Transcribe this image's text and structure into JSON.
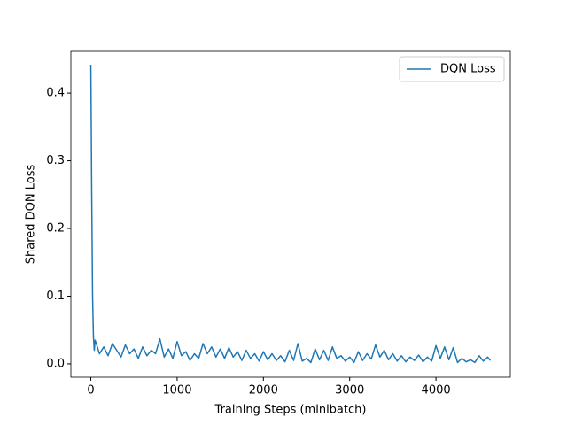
{
  "chart_data": {
    "type": "line",
    "xlabel": "Training Steps (minibatch)",
    "ylabel": "Shared DQN Loss",
    "x": [
      0,
      10,
      20,
      30,
      40,
      50,
      100,
      150,
      200,
      250,
      300,
      350,
      400,
      450,
      500,
      550,
      600,
      650,
      700,
      750,
      800,
      850,
      900,
      950,
      1000,
      1050,
      1100,
      1150,
      1200,
      1250,
      1300,
      1350,
      1400,
      1450,
      1500,
      1550,
      1600,
      1650,
      1700,
      1750,
      1800,
      1850,
      1900,
      1950,
      2000,
      2050,
      2100,
      2150,
      2200,
      2250,
      2300,
      2350,
      2400,
      2450,
      2500,
      2550,
      2600,
      2650,
      2700,
      2750,
      2800,
      2850,
      2900,
      2950,
      3000,
      3050,
      3100,
      3150,
      3200,
      3250,
      3300,
      3350,
      3400,
      3450,
      3500,
      3550,
      3600,
      3650,
      3700,
      3750,
      3800,
      3850,
      3900,
      3950,
      4000,
      4050,
      4100,
      4150,
      4200,
      4250,
      4300,
      4350,
      4400,
      4450,
      4500,
      4550,
      4600,
      4630
    ],
    "series": [
      {
        "name": "DQN Loss",
        "color": "#1f77b4",
        "values": [
          0.442,
          0.25,
          0.1,
          0.04,
          0.02,
          0.035,
          0.015,
          0.025,
          0.012,
          0.03,
          0.02,
          0.01,
          0.028,
          0.015,
          0.022,
          0.008,
          0.025,
          0.012,
          0.02,
          0.015,
          0.037,
          0.01,
          0.022,
          0.008,
          0.033,
          0.012,
          0.018,
          0.005,
          0.015,
          0.008,
          0.03,
          0.015,
          0.025,
          0.01,
          0.022,
          0.008,
          0.024,
          0.01,
          0.018,
          0.005,
          0.02,
          0.008,
          0.015,
          0.004,
          0.018,
          0.006,
          0.015,
          0.005,
          0.012,
          0.003,
          0.02,
          0.005,
          0.03,
          0.004,
          0.008,
          0.002,
          0.022,
          0.006,
          0.02,
          0.005,
          0.025,
          0.008,
          0.012,
          0.004,
          0.01,
          0.002,
          0.018,
          0.005,
          0.015,
          0.007,
          0.028,
          0.01,
          0.02,
          0.006,
          0.015,
          0.004,
          0.012,
          0.003,
          0.01,
          0.005,
          0.013,
          0.003,
          0.01,
          0.004,
          0.027,
          0.008,
          0.025,
          0.006,
          0.024,
          0.002,
          0.008,
          0.003,
          0.006,
          0.002,
          0.012,
          0.004,
          0.01,
          0.005
        ]
      }
    ],
    "xlim": [
      -231.5,
      4861.5
    ],
    "ylim": [
      -0.0197,
      0.4616
    ],
    "xticks": [
      0,
      1000,
      2000,
      3000,
      4000
    ],
    "yticks": [
      {
        "value": 0,
        "label": "0.0"
      },
      0.1,
      0.2,
      0.3,
      0.4
    ],
    "legend": "upper right"
  }
}
